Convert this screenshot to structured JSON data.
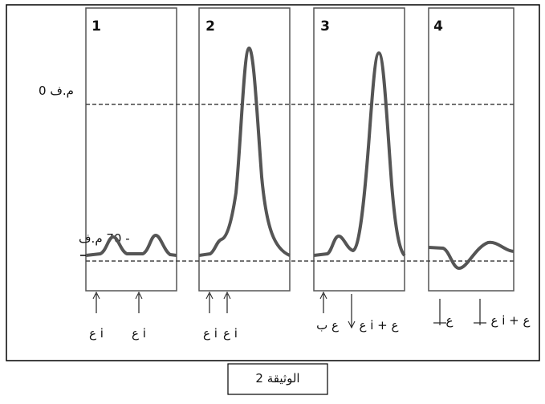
{
  "panels": [
    {
      "number": "1",
      "stimuli": [
        "ع i",
        "ع i"
      ]
    },
    {
      "number": "2",
      "stimuli": [
        "ع i",
        "ع i"
      ]
    },
    {
      "number": "3",
      "stimuli": [
        "ع ب",
        "ع i + ع"
      ]
    },
    {
      "number": "4",
      "stimuli": [
        "ع",
        "ع i + ع"
      ]
    }
  ],
  "levels": {
    "zero": "0 م.ف",
    "rest": "- 70 م.ف"
  },
  "caption": "الوثيقة 2"
}
